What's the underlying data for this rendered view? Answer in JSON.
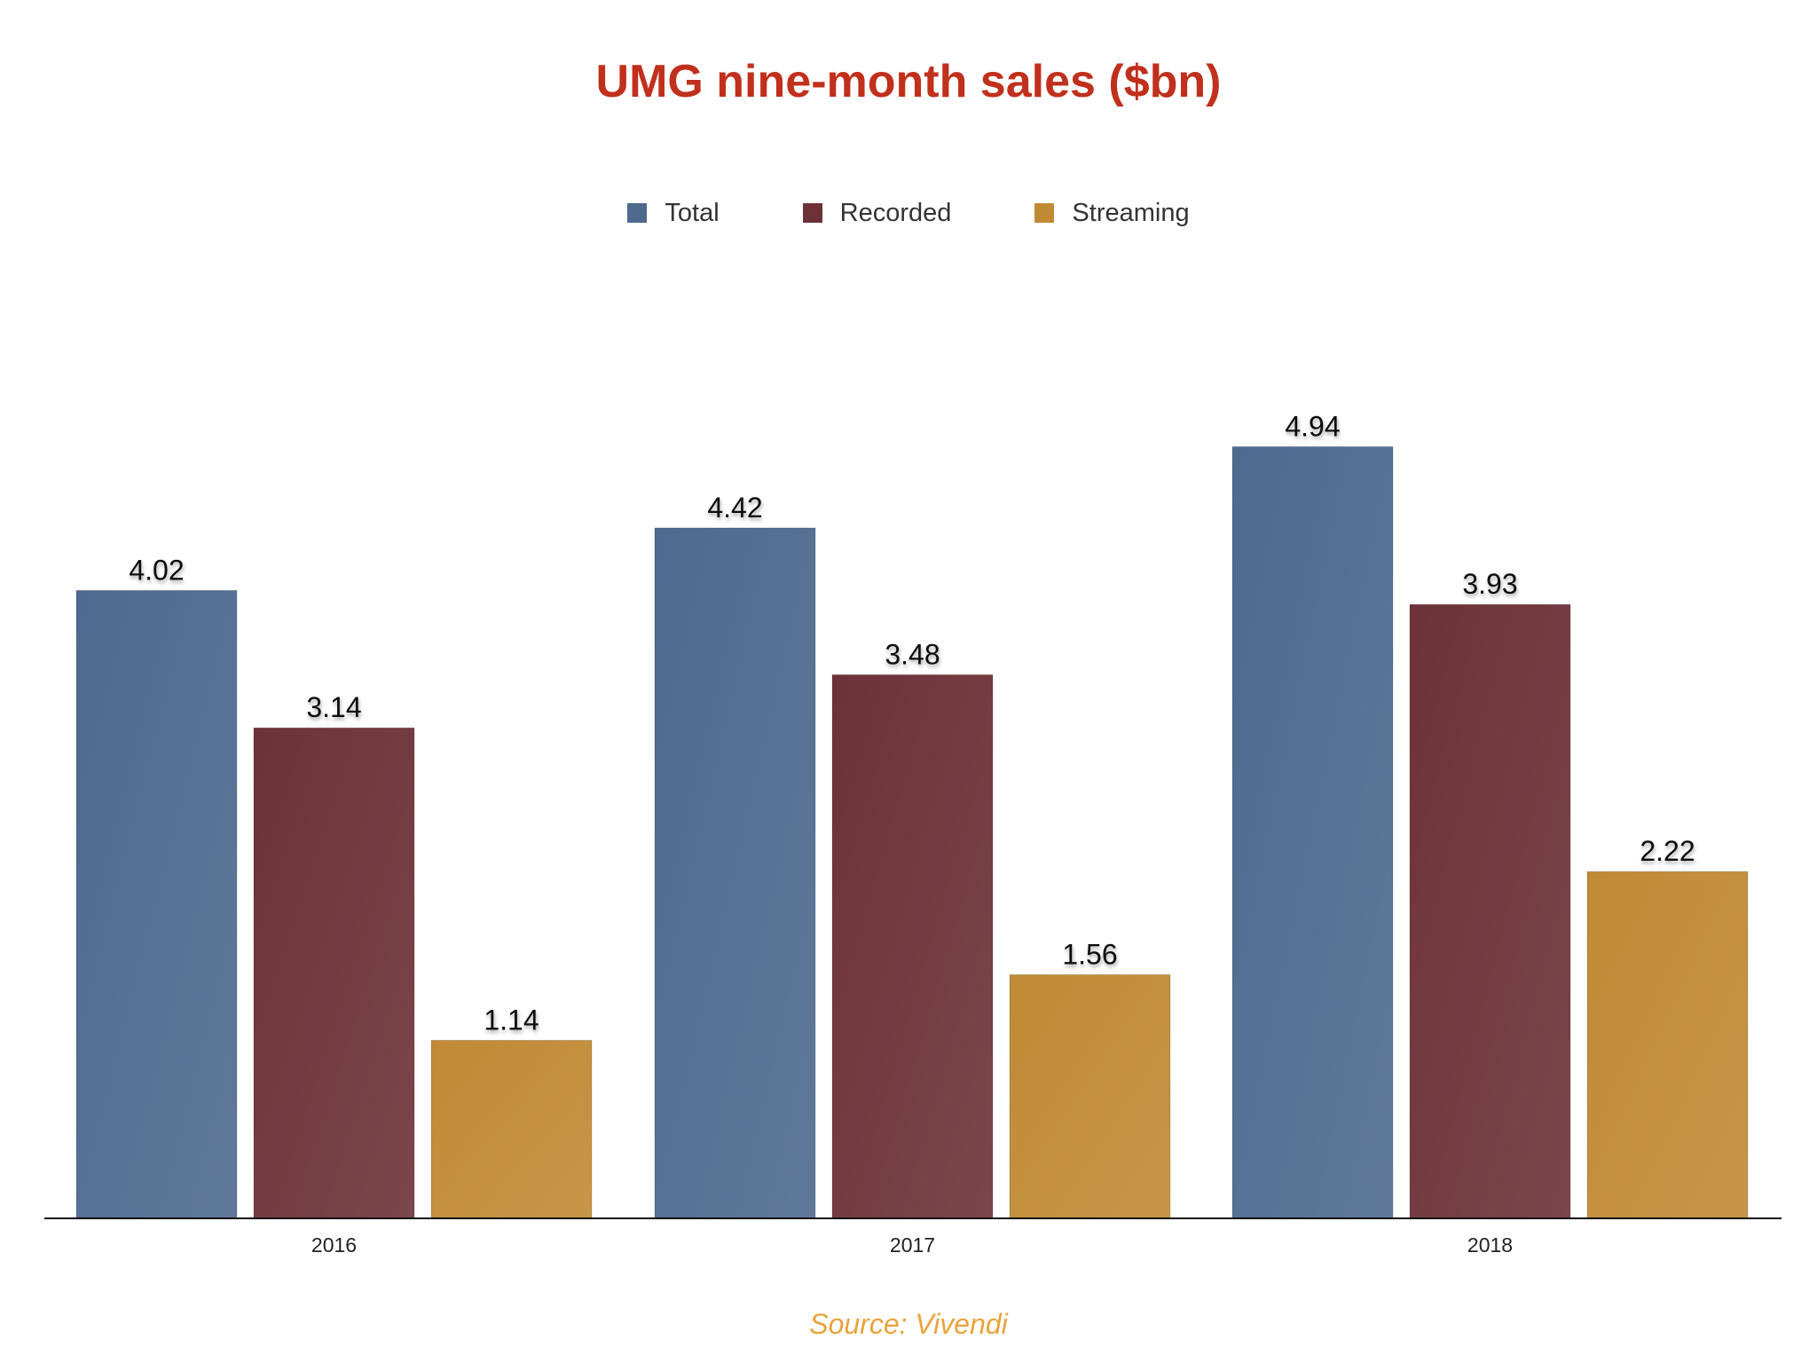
{
  "chart_data": {
    "type": "bar",
    "title": "UMG nine-month sales ($bn)",
    "categories": [
      "2016",
      "2017",
      "2018"
    ],
    "series": [
      {
        "name": "Total",
        "values": [
          4.02,
          4.42,
          4.94
        ],
        "color": "#4e6a8f"
      },
      {
        "name": "Recorded",
        "values": [
          3.14,
          3.48,
          3.93
        ],
        "color": "#6d3238"
      },
      {
        "name": "Streaming",
        "values": [
          1.14,
          1.56,
          2.22
        ],
        "color": "#c08a35"
      }
    ],
    "xlabel": "",
    "ylabel": "",
    "ylim": [
      0,
      5.3
    ],
    "grid": false,
    "legend_position": "top-center",
    "data_labels": [
      "4.02",
      "4.42",
      "4.94",
      "3.14",
      "3.48",
      "3.93",
      "1.14",
      "1.56",
      "2.22"
    ]
  },
  "source": "Source: Vivendi",
  "colors": {
    "title": "#c0301c",
    "source": "#e8a33c",
    "axis": "#111111"
  }
}
